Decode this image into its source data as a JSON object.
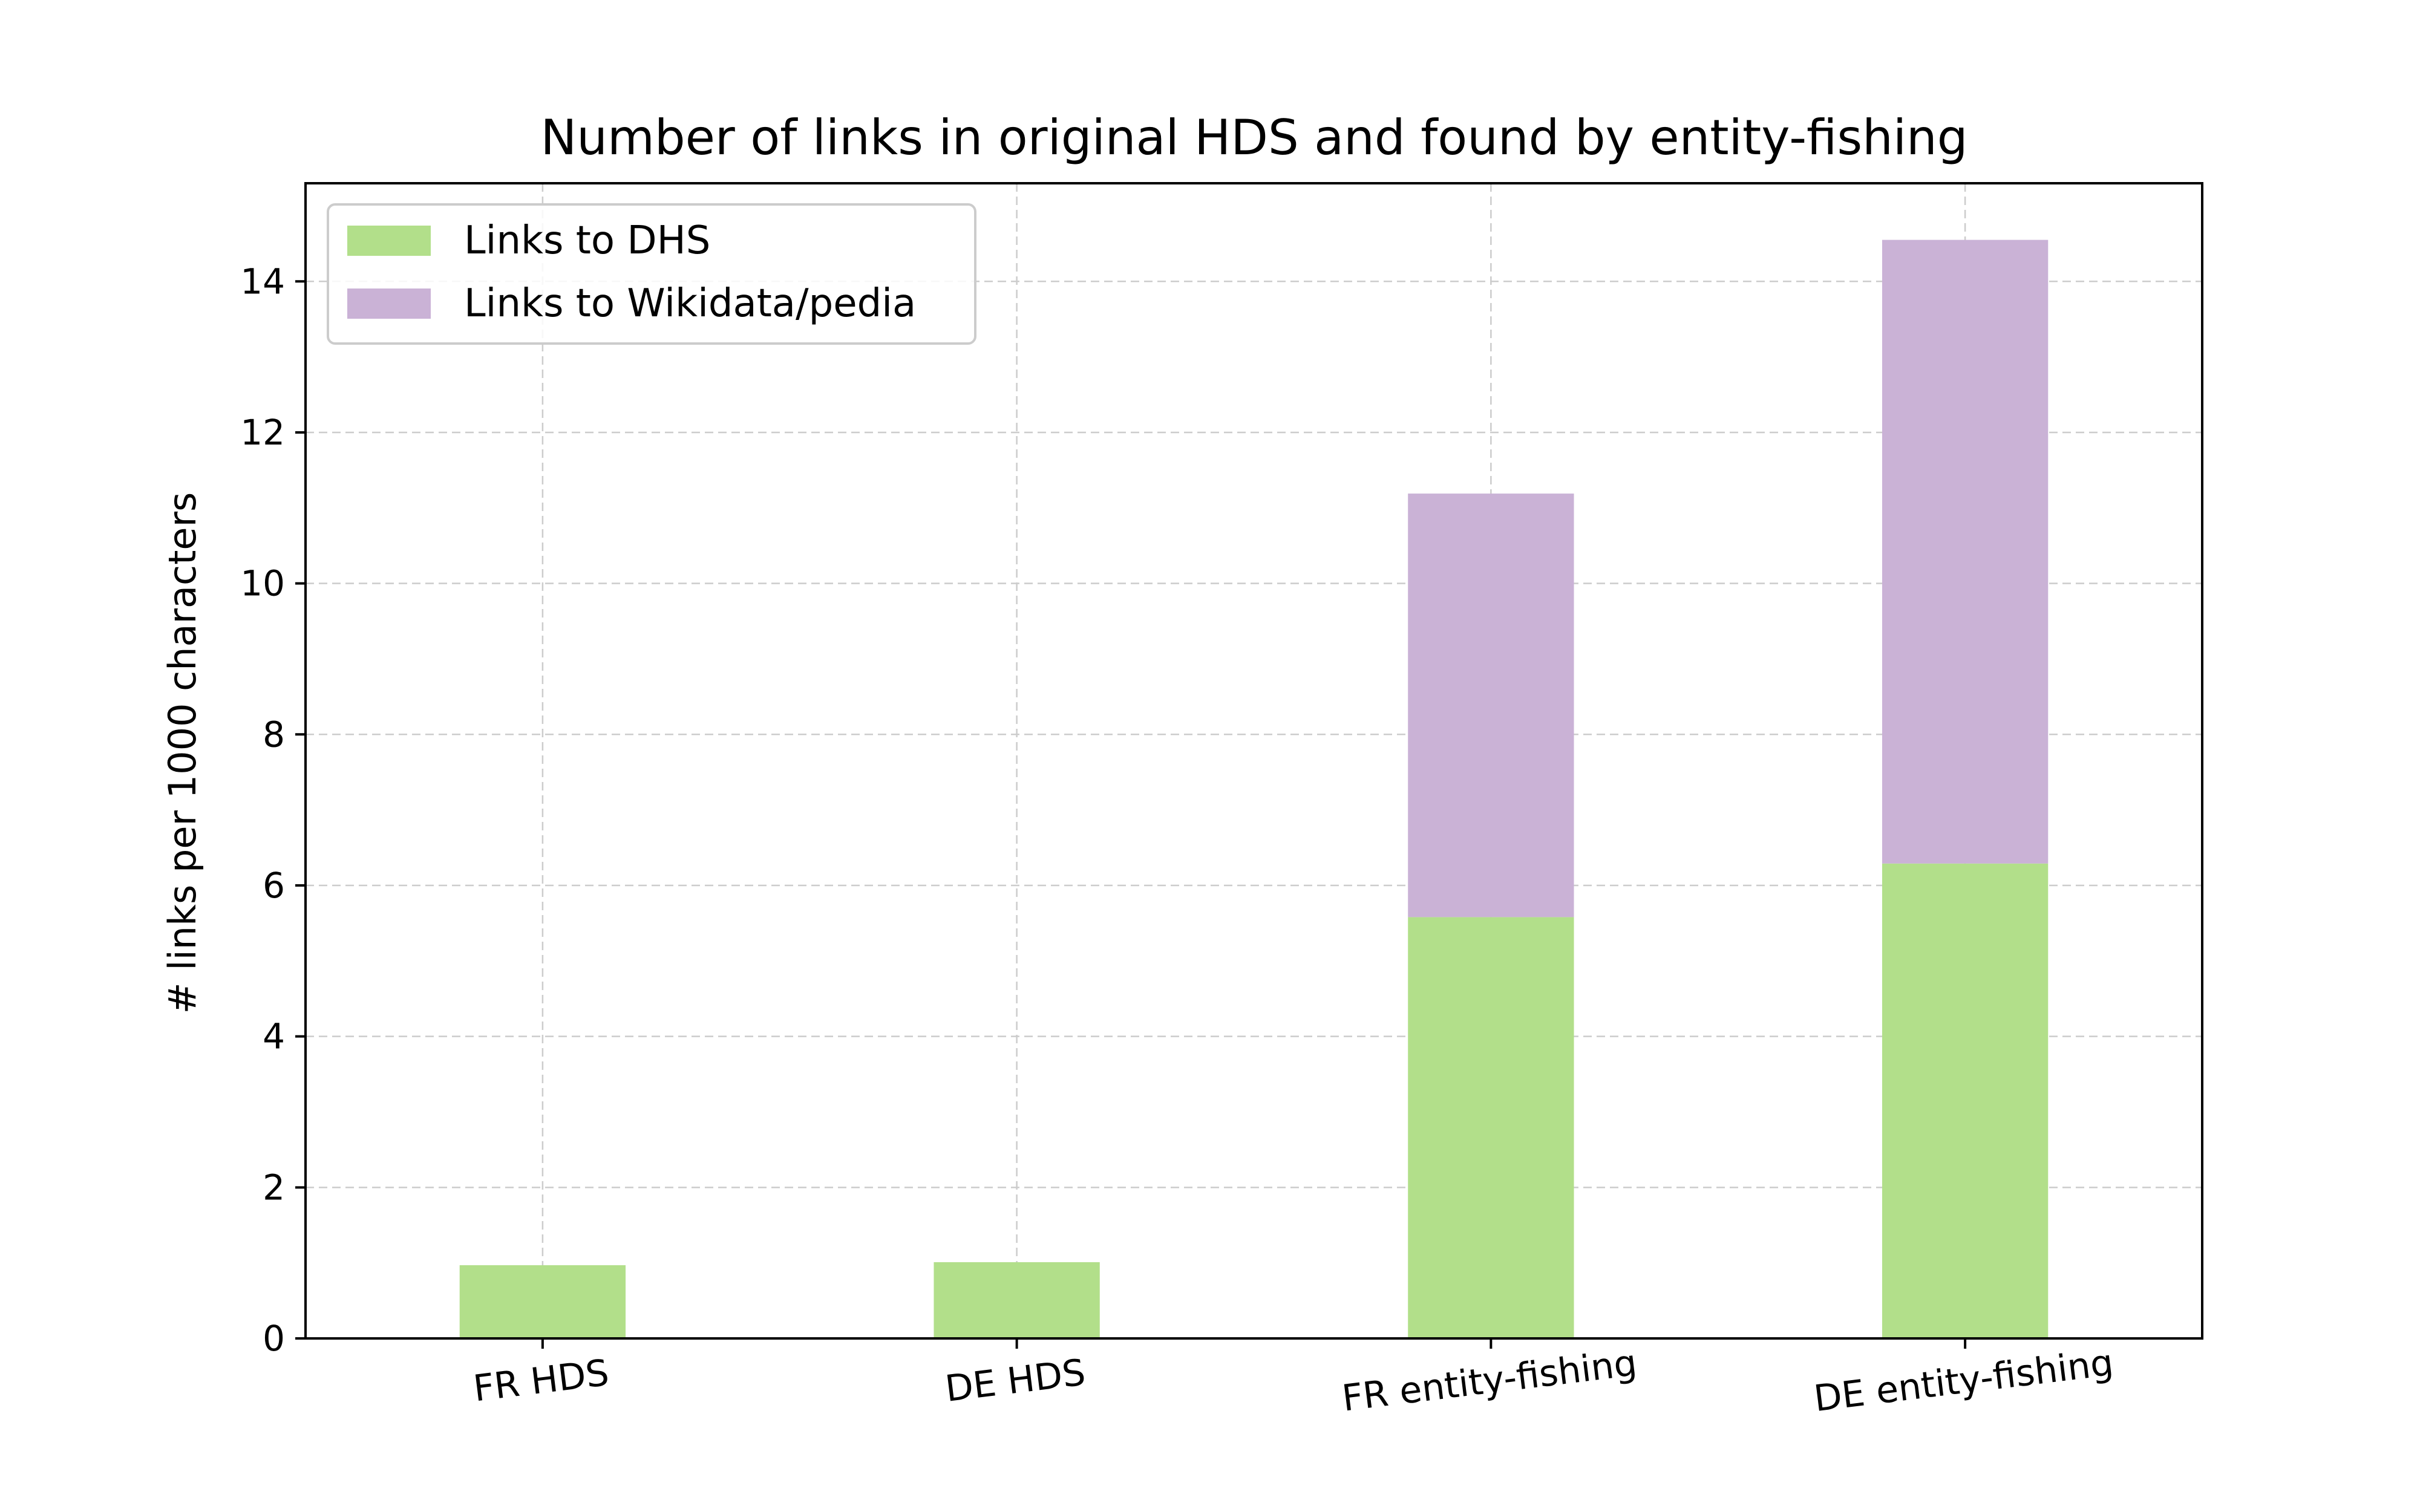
{
  "chart_data": {
    "type": "bar",
    "stacked": true,
    "title": "Number of links in original HDS and found by entity-fishing",
    "xlabel": "",
    "ylabel": "# links per 1000 characters",
    "categories": [
      "FR HDS",
      "DE HDS",
      "FR entity-fishing",
      "DE entity-fishing"
    ],
    "series": [
      {
        "name": "Links to DHS",
        "color": "#b2df8a",
        "values": [
          0.97,
          1.01,
          5.58,
          6.29
        ]
      },
      {
        "name": "Links to Wikidata/pedia",
        "color": "#cab2d6",
        "values": [
          0,
          0,
          5.61,
          8.26
        ]
      }
    ],
    "ylim": [
      0,
      15.3
    ],
    "yticks": [
      0,
      2,
      4,
      6,
      8,
      10,
      12,
      14
    ],
    "grid": true,
    "legend_position": "top-left"
  }
}
